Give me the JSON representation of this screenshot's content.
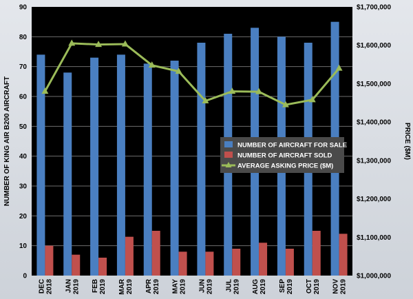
{
  "chart_data": {
    "type": "bar",
    "categories": [
      [
        "DEC",
        "2018"
      ],
      [
        "JAN",
        "2019"
      ],
      [
        "FEB",
        "2019"
      ],
      [
        "MAR",
        "2019"
      ],
      [
        "APR",
        "2019"
      ],
      [
        "MAY",
        "2019"
      ],
      [
        "JUN",
        "2019"
      ],
      [
        "JUL",
        "2019"
      ],
      [
        "AUG",
        "2019"
      ],
      [
        "SEP",
        "2019"
      ],
      [
        "OCT",
        "2019"
      ],
      [
        "NOV",
        "2019"
      ]
    ],
    "series": [
      {
        "name": "NUMBER OF AIRCRAFT FOR SALE",
        "type": "bar",
        "axis": "left",
        "color": "#4a7fc1",
        "values": [
          74,
          68,
          73,
          74,
          71,
          72,
          78,
          81,
          83,
          80,
          78,
          85
        ]
      },
      {
        "name": "NUMBER OF AIRCRAFT SOLD",
        "type": "bar",
        "axis": "left",
        "color": "#c0504d",
        "values": [
          10,
          7,
          6,
          13,
          15,
          8,
          8,
          9,
          11,
          9,
          15,
          14
        ]
      },
      {
        "name": "AVERAGE ASKING PRICE ($M)",
        "type": "line",
        "axis": "right",
        "color": "#9bbb59",
        "values": [
          1480000,
          1605000,
          1602000,
          1603000,
          1548000,
          1532000,
          1455000,
          1480000,
          1479000,
          1445000,
          1458000,
          1540000
        ]
      }
    ],
    "ylabel": "NUMBER OF KING AIR B200 AIRCRAFT",
    "ylabel_right": "PRICE ($M)",
    "ylim": [
      0,
      90
    ],
    "ylim_right": [
      1000000,
      1700000
    ],
    "yticks": [
      0,
      10,
      20,
      30,
      40,
      50,
      60,
      70,
      80,
      90
    ],
    "yticks_right": [
      "$1,000,000",
      "$1,100,000",
      "$1,200,000",
      "$1,300,000",
      "$1,400,000",
      "$1,500,000",
      "$1,600,000",
      "$1,700,000"
    ],
    "grid": true,
    "legend": "center-right",
    "colors": {
      "plot_bg": "#000000",
      "grid": "#6e6e6e"
    }
  }
}
